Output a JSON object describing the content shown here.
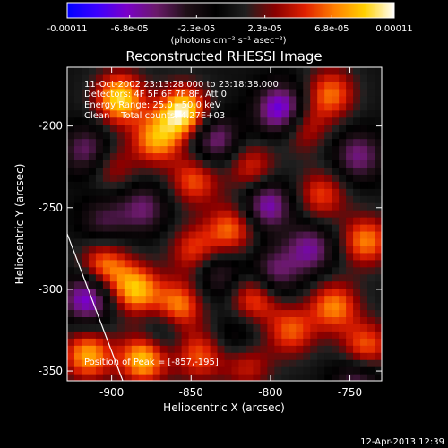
{
  "chart_data": {
    "type": "heatmap",
    "title": "Reconstructed RHESSI Image",
    "xlabel": "Heliocentric X (arcsec)",
    "ylabel": "Heliocentric Y (arcsec)",
    "xlim": [
      -928,
      -730
    ],
    "ylim": [
      -356,
      -164
    ],
    "x_ticks": [
      -900,
      -850,
      -800,
      -750
    ],
    "y_ticks": [
      -200,
      -250,
      -300,
      -350
    ],
    "x_tick_labels": [
      "-900",
      "-850",
      "-800",
      "-750"
    ],
    "y_tick_labels": [
      "-200",
      "-250",
      "-300",
      "-350"
    ],
    "colorbar": {
      "tick_labels": [
        "-0.00011",
        "-6.8e-05",
        "-2.3e-05",
        "2.3e-05",
        "6.8e-05",
        "0.00011"
      ],
      "tick_values": [
        -0.00011,
        -6.8e-05,
        -2.3e-05,
        2.3e-05,
        6.8e-05,
        0.00011
      ],
      "range": [
        -0.00011,
        0.00011
      ],
      "units_label": "(photons cm⁻² s⁻¹ asec⁻²)",
      "colormap": [
        "#0000ff",
        "#3c00ff",
        "#7a00c8",
        "#6a1a6a",
        "#201018",
        "#000000",
        "#202020",
        "#8a0000",
        "#e02000",
        "#ff8000",
        "#ffd000",
        "#ffffff"
      ]
    },
    "annotations": [
      "11-Oct-2002 23:13:28.000 to 23:18:38.000",
      "Detectors: 4F 5F 6F 7F 8F, Att 0",
      "Energy Range: 25.0 - 50.0 keV",
      "Clean    Total counts: 4.27E+03"
    ],
    "peak_label": "Position of Peak = [-857,-195]",
    "peak": [
      -857,
      -195
    ],
    "limb_line": [
      [
        -928,
        -266
      ],
      [
        -893,
        -356
      ]
    ],
    "image_sources": [
      {
        "x": -895,
        "y": -183,
        "v": 9.5e-05
      },
      {
        "x": -855,
        "y": -191,
        "v": 0.000105
      },
      {
        "x": -872,
        "y": -208,
        "v": 7.5e-05
      },
      {
        "x": -762,
        "y": -180,
        "v": 6.5e-05
      },
      {
        "x": -780,
        "y": -200,
        "v": 5e-05
      },
      {
        "x": -848,
        "y": -233,
        "v": 6e-05
      },
      {
        "x": -825,
        "y": -263,
        "v": 6.5e-05
      },
      {
        "x": -812,
        "y": -225,
        "v": 5e-05
      },
      {
        "x": -768,
        "y": -242,
        "v": 5.5e-05
      },
      {
        "x": -740,
        "y": -270,
        "v": 7e-05
      },
      {
        "x": -905,
        "y": -285,
        "v": 7e-05
      },
      {
        "x": -885,
        "y": -300,
        "v": 8.5e-05
      },
      {
        "x": -858,
        "y": -310,
        "v": 7.5e-05
      },
      {
        "x": -848,
        "y": -276,
        "v": 5.5e-05
      },
      {
        "x": -810,
        "y": -305,
        "v": 6.5e-05
      },
      {
        "x": -787,
        "y": -325,
        "v": 6e-05
      },
      {
        "x": -760,
        "y": -310,
        "v": 7e-05
      },
      {
        "x": -740,
        "y": -335,
        "v": 6.5e-05
      },
      {
        "x": -915,
        "y": -340,
        "v": 8e-05
      },
      {
        "x": -880,
        "y": -342,
        "v": 9e-05
      },
      {
        "x": -845,
        "y": -340,
        "v": 6e-05
      },
      {
        "x": -815,
        "y": -345,
        "v": 5e-05
      },
      {
        "x": -900,
        "y": -225,
        "v": 4e-05
      },
      {
        "x": -793,
        "y": -190,
        "v": -9e-05
      },
      {
        "x": -835,
        "y": -208,
        "v": -6e-05
      },
      {
        "x": -802,
        "y": -248,
        "v": -7e-05
      },
      {
        "x": -880,
        "y": -250,
        "v": -5e-05
      },
      {
        "x": -915,
        "y": -215,
        "v": -5.5e-05
      },
      {
        "x": -833,
        "y": -290,
        "v": -4.5e-05
      },
      {
        "x": -775,
        "y": -275,
        "v": -6e-05
      },
      {
        "x": -745,
        "y": -218,
        "v": -5.5e-05
      },
      {
        "x": -745,
        "y": -355,
        "v": -5e-05
      },
      {
        "x": -798,
        "y": -290,
        "v": -5.5e-05
      },
      {
        "x": -868,
        "y": -325,
        "v": -3.5e-05
      },
      {
        "x": -915,
        "y": -305,
        "v": -8e-05
      },
      {
        "x": -905,
        "y": -258,
        "v": -4e-05
      },
      {
        "x": -820,
        "y": -330,
        "v": -3.5e-05
      }
    ]
  },
  "footer": {
    "timestamp": "12-Apr-2013 12:39"
  }
}
